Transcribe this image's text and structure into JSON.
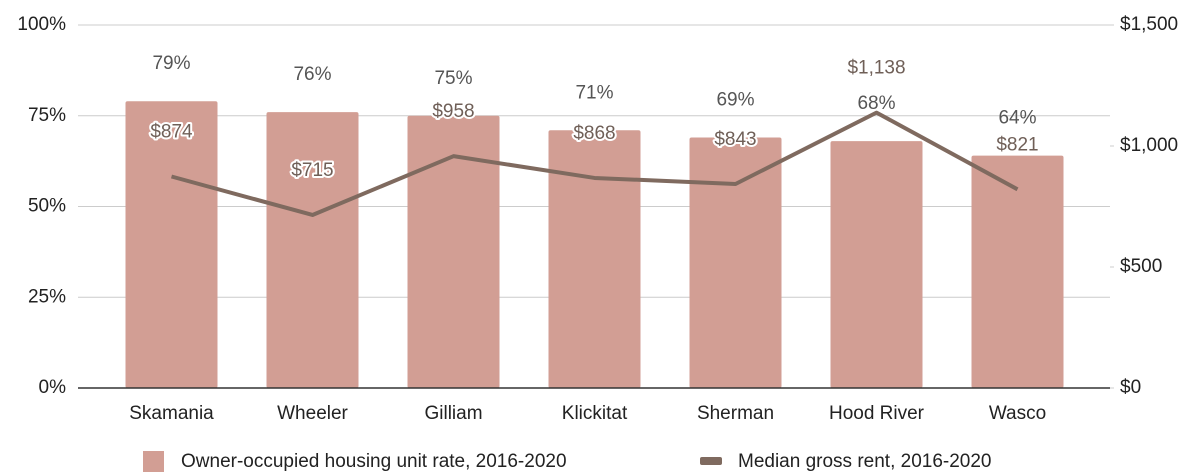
{
  "chart_data": {
    "type": "bar",
    "categories": [
      "Skamania",
      "Wheeler",
      "Gilliam",
      "Klickitat",
      "Sherman",
      "Hood River",
      "Wasco"
    ],
    "series": [
      {
        "name": "Owner-occupied housing unit rate, 2016-2020",
        "type": "bar",
        "color": "#d29e94",
        "values": [
          79,
          76,
          75,
          71,
          69,
          68,
          64
        ],
        "value_labels": [
          "79%",
          "76%",
          "75%",
          "71%",
          "69%",
          "68%",
          "64%"
        ]
      },
      {
        "name": "Median gross rent, 2016-2020",
        "type": "line",
        "axis": "y2",
        "color": "#7f6a5f",
        "values": [
          874,
          715,
          958,
          868,
          843,
          1138,
          821
        ],
        "value_labels": [
          "$874",
          "$715",
          "$958",
          "$868",
          "$843",
          "$1,138",
          "$821"
        ]
      }
    ],
    "ylim": [
      0,
      100
    ],
    "yticks": [
      {
        "value": 0,
        "label": "0%"
      },
      {
        "value": 25,
        "label": "25%"
      },
      {
        "value": 50,
        "label": "50%"
      },
      {
        "value": 75,
        "label": "75%"
      },
      {
        "value": 100,
        "label": "100%"
      }
    ],
    "y2lim": [
      0,
      1500
    ],
    "y2ticks": [
      {
        "value": 0,
        "label": "$0"
      },
      {
        "value": 500,
        "label": "$500"
      },
      {
        "value": 1000,
        "label": "$1,000"
      },
      {
        "value": 1500,
        "label": "$1,500"
      }
    ],
    "grid": true,
    "legend": "bottom"
  }
}
